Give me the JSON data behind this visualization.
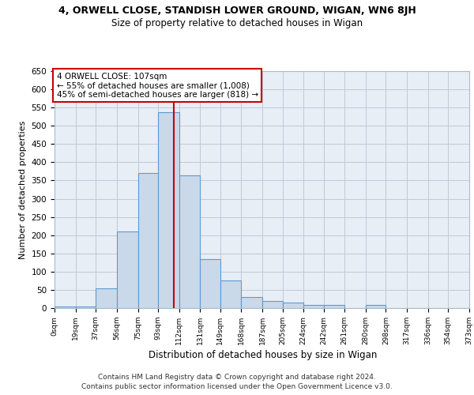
{
  "title_line1": "4, ORWELL CLOSE, STANDISH LOWER GROUND, WIGAN, WN6 8JH",
  "title_line2": "Size of property relative to detached houses in Wigan",
  "xlabel": "Distribution of detached houses by size in Wigan",
  "ylabel": "Number of detached properties",
  "footer_line1": "Contains HM Land Registry data © Crown copyright and database right 2024.",
  "footer_line2": "Contains public sector information licensed under the Open Government Licence v3.0.",
  "annotation_line1": "4 ORWELL CLOSE: 107sqm",
  "annotation_line2": "← 55% of detached houses are smaller (1,008)",
  "annotation_line3": "45% of semi-detached houses are larger (818) →",
  "property_size": 107,
  "bin_edges": [
    0,
    19,
    37,
    56,
    75,
    93,
    112,
    131,
    149,
    168,
    187,
    205,
    224,
    242,
    261,
    280,
    298,
    317,
    336,
    354,
    373
  ],
  "bar_heights": [
    5,
    5,
    55,
    210,
    370,
    538,
    363,
    135,
    75,
    30,
    20,
    15,
    8,
    8,
    0,
    8,
    0,
    0,
    0,
    0
  ],
  "bar_color": "#c9d9ea",
  "bar_edge_color": "#5b9bd5",
  "vline_color": "#cc0000",
  "annotation_box_edge": "#cc0000",
  "grid_color": "#c0c8d8",
  "axes_bg_color": "#e8eef5",
  "ylim": [
    0,
    650
  ],
  "yticks": [
    0,
    50,
    100,
    150,
    200,
    250,
    300,
    350,
    400,
    450,
    500,
    550,
    600,
    650
  ],
  "tick_labels": [
    "0sqm",
    "19sqm",
    "37sqm",
    "56sqm",
    "75sqm",
    "93sqm",
    "112sqm",
    "131sqm",
    "149sqm",
    "168sqm",
    "187sqm",
    "205sqm",
    "224sqm",
    "242sqm",
    "261sqm",
    "280sqm",
    "298sqm",
    "317sqm",
    "336sqm",
    "354sqm",
    "373sqm"
  ]
}
